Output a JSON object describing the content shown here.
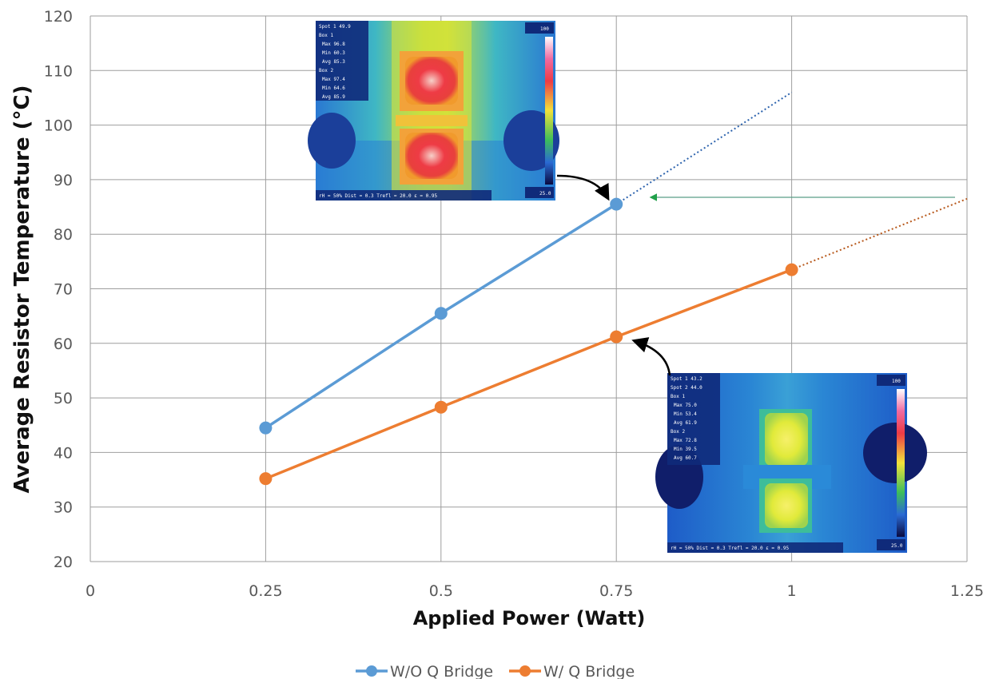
{
  "chart_data": {
    "type": "line",
    "xlabel": "Applied Power  (Watt)",
    "ylabel": "Average Resistor Temperature (°C)",
    "xlim": [
      0,
      1.25
    ],
    "ylim": [
      20,
      120
    ],
    "x_ticks": [
      "0",
      "0.25",
      "0.5",
      "0.75",
      "1",
      "1.25"
    ],
    "y_ticks": [
      "20",
      "30",
      "40",
      "50",
      "60",
      "70",
      "80",
      "90",
      "100",
      "110",
      "120"
    ],
    "grid": true,
    "legend_position": "bottom-center",
    "series": [
      {
        "name": "W/O Q Bridge",
        "color": "#5b9bd5",
        "x": [
          0.25,
          0.5,
          0.75
        ],
        "values": [
          44.5,
          65.5,
          85.5
        ],
        "trend_end": [
          1.0,
          106
        ]
      },
      {
        "name": "W/ Q Bridge",
        "color": "#ed7d31",
        "x": [
          0.25,
          0.5,
          0.75,
          1.0
        ],
        "values": [
          35.2,
          48.3,
          61.2,
          73.5
        ],
        "trend_end": [
          1.25,
          86.5
        ]
      }
    ],
    "annotations": [
      {
        "type": "thermal-image",
        "target_series": "W/O Q Bridge",
        "target_x": 0.75,
        "scale_max": "100",
        "scale_min": "25.0"
      },
      {
        "type": "thermal-image",
        "target_series": "W/ Q Bridge",
        "target_x": 0.75,
        "scale_max": "100",
        "scale_min": "25.0"
      },
      {
        "type": "reference-arrow",
        "y": 87,
        "color": "#2e9e4f"
      }
    ]
  }
}
